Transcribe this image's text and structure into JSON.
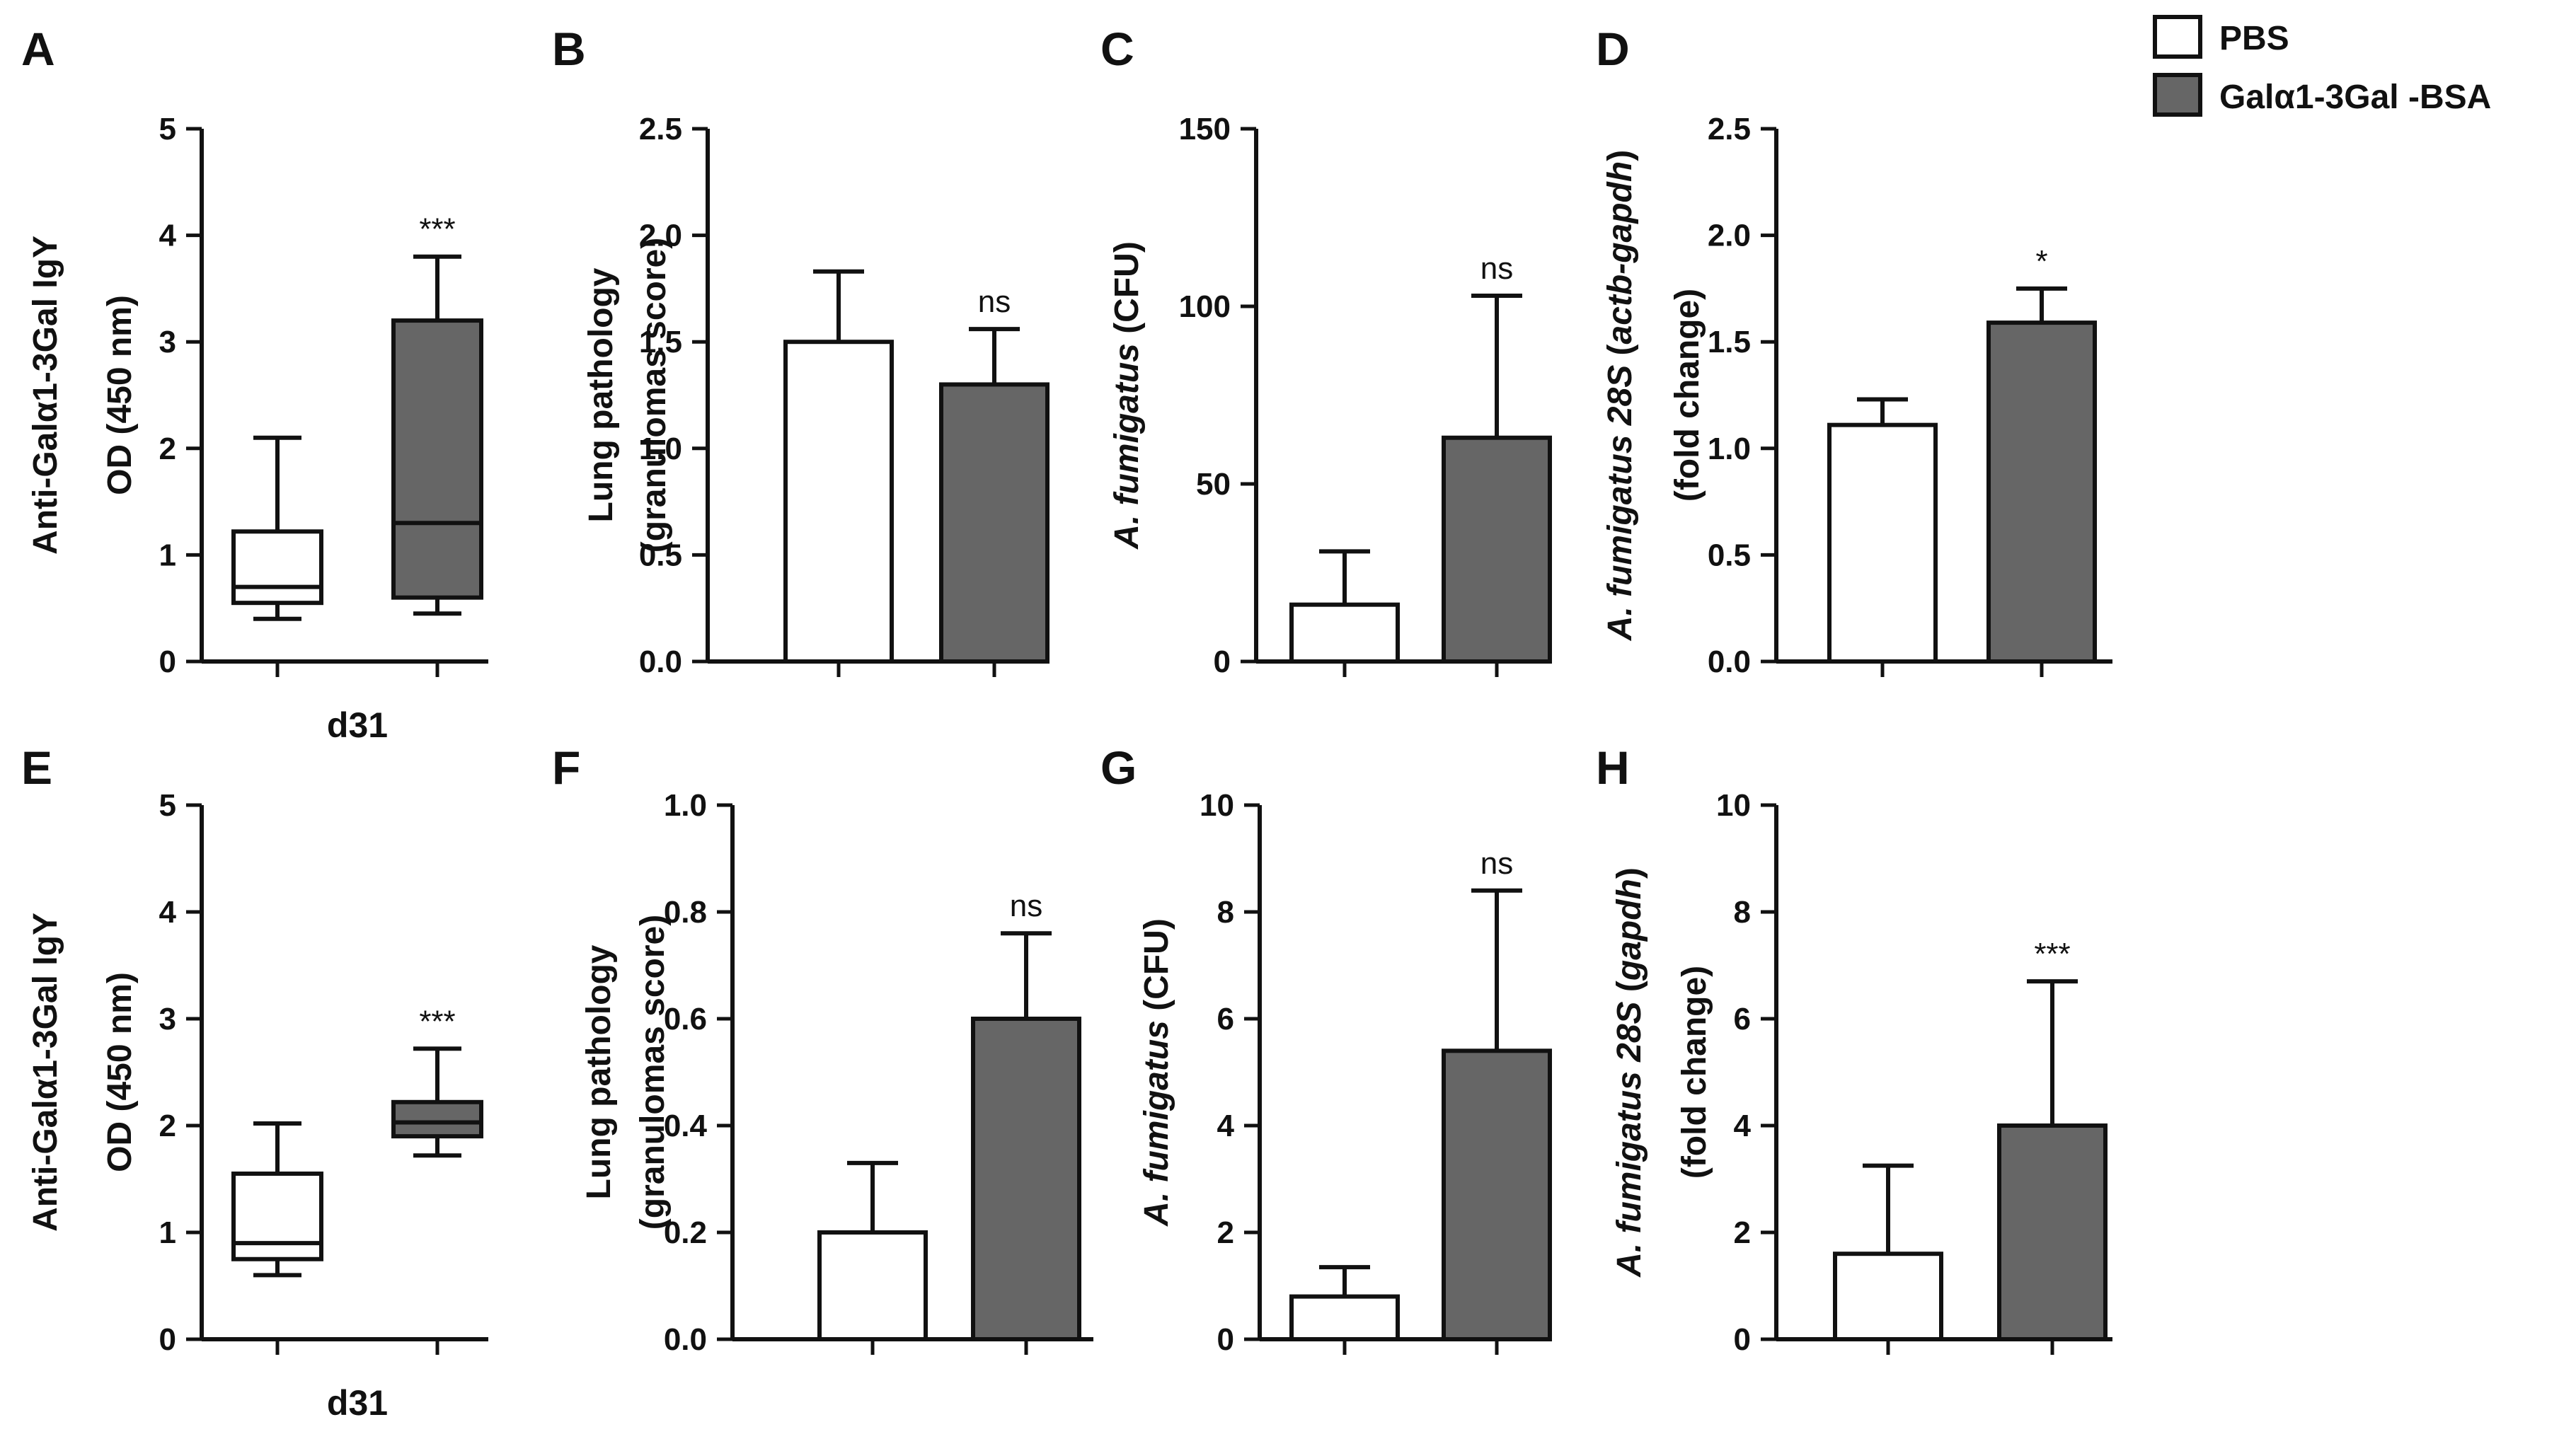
{
  "legend": {
    "items": [
      {
        "label": "PBS",
        "color": "#ffffff"
      },
      {
        "label": "Galα1-3Gal -BSA",
        "color": "#666666"
      }
    ]
  },
  "chart_data": [
    {
      "panel": "A",
      "type": "box",
      "ylabel_lines": [
        "Anti-Galα1-3Gal IgY",
        "OD (450 nm)"
      ],
      "xlabel": "d31",
      "ylim": [
        0,
        5
      ],
      "yticks": [
        "0",
        "1",
        "2",
        "3",
        "4",
        "5"
      ],
      "boxes": [
        {
          "group": "PBS",
          "min": 0.4,
          "q1": 0.55,
          "median": 0.7,
          "q3": 1.22,
          "max": 2.1,
          "color": "#ffffff",
          "sig": ""
        },
        {
          "group": "Galα1-3Gal -BSA",
          "min": 0.45,
          "q1": 0.6,
          "median": 1.3,
          "q3": 3.2,
          "max": 3.8,
          "color": "#666666",
          "sig": "***"
        }
      ]
    },
    {
      "panel": "B",
      "type": "bar",
      "ylabel_lines": [
        "Lung pathology",
        "(granulomas score)"
      ],
      "ylim": [
        0,
        2.5
      ],
      "yticks": [
        "0.0",
        "0.5",
        "1.0",
        "1.5",
        "2.0",
        "2.5"
      ],
      "bars": [
        {
          "group": "PBS",
          "value": 1.5,
          "error": 0.33,
          "color": "#ffffff",
          "sig": ""
        },
        {
          "group": "Galα1-3Gal -BSA",
          "value": 1.3,
          "error": 0.26,
          "color": "#666666",
          "sig": "ns"
        }
      ]
    },
    {
      "panel": "C",
      "type": "bar",
      "ylabel_lines": [
        "A. fumigatus (CFU)"
      ],
      "ylim": [
        0,
        150
      ],
      "yticks": [
        "0",
        "50",
        "100",
        "150"
      ],
      "bars": [
        {
          "group": "PBS",
          "value": 16,
          "error": 15,
          "color": "#ffffff",
          "sig": ""
        },
        {
          "group": "Galα1-3Gal -BSA",
          "value": 63,
          "error": 40,
          "color": "#666666",
          "sig": "ns"
        }
      ]
    },
    {
      "panel": "D",
      "type": "bar",
      "ylabel_lines": [
        "A. fumigatus 28S (actb-gapdh)",
        "(fold change)"
      ],
      "ylim": [
        0,
        2.5
      ],
      "yticks": [
        "0.0",
        "0.5",
        "1.0",
        "1.5",
        "2.0",
        "2.5"
      ],
      "bars": [
        {
          "group": "PBS",
          "value": 1.11,
          "error": 0.12,
          "color": "#ffffff",
          "sig": ""
        },
        {
          "group": "Galα1-3Gal -BSA",
          "value": 1.59,
          "error": 0.16,
          "color": "#666666",
          "sig": "*"
        }
      ]
    },
    {
      "panel": "E",
      "type": "box",
      "ylabel_lines": [
        "Anti-Galα1-3Gal IgY",
        "OD (450 nm)"
      ],
      "xlabel": "d31",
      "ylim": [
        0,
        5
      ],
      "yticks": [
        "0",
        "1",
        "2",
        "3",
        "4",
        "5"
      ],
      "boxes": [
        {
          "group": "PBS",
          "min": 0.6,
          "q1": 0.75,
          "median": 0.9,
          "q3": 1.55,
          "max": 2.02,
          "color": "#ffffff",
          "sig": ""
        },
        {
          "group": "Galα1-3Gal -BSA",
          "min": 1.72,
          "q1": 1.9,
          "median": 2.03,
          "q3": 2.22,
          "max": 2.72,
          "color": "#666666",
          "sig": "***"
        }
      ]
    },
    {
      "panel": "F",
      "type": "bar",
      "ylabel_lines": [
        "Lung pathology",
        "(granulomas score)"
      ],
      "ylim": [
        0,
        1.0
      ],
      "yticks": [
        "0.0",
        "0.2",
        "0.4",
        "0.6",
        "0.8",
        "1.0"
      ],
      "bars": [
        {
          "group": "PBS",
          "value": 0.2,
          "error": 0.13,
          "color": "#ffffff",
          "sig": ""
        },
        {
          "group": "Galα1-3Gal -BSA",
          "value": 0.6,
          "error": 0.16,
          "color": "#666666",
          "sig": "ns"
        }
      ]
    },
    {
      "panel": "G",
      "type": "bar",
      "ylabel_lines": [
        "A. fumigatus (CFU)"
      ],
      "ylim": [
        0,
        10
      ],
      "yticks": [
        "0",
        "2",
        "4",
        "6",
        "8",
        "10"
      ],
      "bars": [
        {
          "group": "PBS",
          "value": 0.8,
          "error": 0.55,
          "color": "#ffffff",
          "sig": ""
        },
        {
          "group": "Galα1-3Gal -BSA",
          "value": 5.4,
          "error": 3.0,
          "color": "#666666",
          "sig": "ns"
        }
      ]
    },
    {
      "panel": "H",
      "type": "bar",
      "ylabel_lines": [
        "A. fumigatus 28S (gapdh)",
        "(fold change)"
      ],
      "ylim": [
        0,
        10
      ],
      "yticks": [
        "0",
        "2",
        "4",
        "6",
        "8",
        "10"
      ],
      "bars": [
        {
          "group": "PBS",
          "value": 1.6,
          "error": 1.65,
          "color": "#ffffff",
          "sig": ""
        },
        {
          "group": "Galα1-3Gal -BSA",
          "value": 4.0,
          "error": 2.7,
          "color": "#666666",
          "sig": "***"
        }
      ]
    }
  ]
}
